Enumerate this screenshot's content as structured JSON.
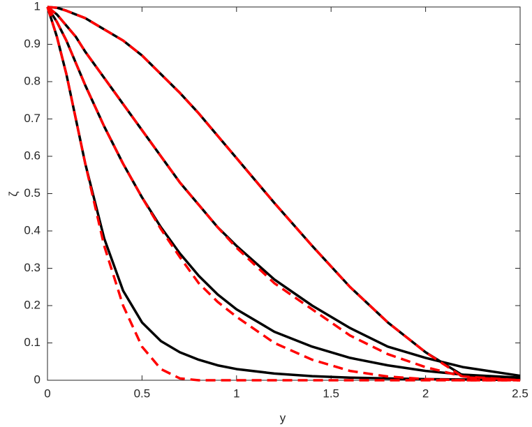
{
  "chart_data": {
    "type": "line",
    "xlabel": "y",
    "ylabel": "ζ",
    "x": [
      0,
      0.05,
      0.1,
      0.15,
      0.2,
      0.3,
      0.4,
      0.5,
      0.6,
      0.7,
      0.8,
      0.9,
      1.0,
      1.2,
      1.4,
      1.6,
      1.8,
      2.0,
      2.2,
      2.5
    ],
    "series": [
      {
        "color": "#000000",
        "line_style": "solid",
        "values": [
          1,
          0.998,
          0.99,
          0.98,
          0.97,
          0.94,
          0.91,
          0.87,
          0.82,
          0.77,
          0.715,
          0.655,
          0.595,
          0.475,
          0.36,
          0.25,
          0.155,
          0.075,
          0.012,
          0.003
        ]
      },
      {
        "color": "#000000",
        "line_style": "solid",
        "values": [
          1,
          0.98,
          0.95,
          0.92,
          0.88,
          0.81,
          0.74,
          0.67,
          0.6,
          0.53,
          0.47,
          0.41,
          0.36,
          0.27,
          0.2,
          0.14,
          0.09,
          0.06,
          0.035,
          0.012
        ]
      },
      {
        "color": "#000000",
        "line_style": "solid",
        "values": [
          1,
          0.96,
          0.91,
          0.85,
          0.79,
          0.68,
          0.58,
          0.49,
          0.41,
          0.34,
          0.28,
          0.23,
          0.19,
          0.13,
          0.09,
          0.06,
          0.04,
          0.025,
          0.015,
          0.007
        ]
      },
      {
        "color": "#000000",
        "line_style": "solid",
        "values": [
          1,
          0.92,
          0.82,
          0.7,
          0.58,
          0.38,
          0.24,
          0.155,
          0.105,
          0.075,
          0.055,
          0.04,
          0.03,
          0.018,
          0.011,
          0.007,
          0.005,
          0.003,
          0.002,
          0.001
        ]
      },
      {
        "color": "#ff0000",
        "line_style": "dashed",
        "values": [
          1,
          0.998,
          0.99,
          0.98,
          0.97,
          0.94,
          0.91,
          0.87,
          0.82,
          0.77,
          0.715,
          0.655,
          0.595,
          0.475,
          0.36,
          0.25,
          0.155,
          0.075,
          0.008,
          0
        ]
      },
      {
        "color": "#ff0000",
        "line_style": "dashed",
        "values": [
          1,
          0.98,
          0.95,
          0.92,
          0.88,
          0.81,
          0.74,
          0.67,
          0.6,
          0.53,
          0.47,
          0.41,
          0.355,
          0.26,
          0.19,
          0.12,
          0.07,
          0.035,
          0.01,
          0
        ]
      },
      {
        "color": "#ff0000",
        "line_style": "dashed",
        "values": [
          1,
          0.96,
          0.91,
          0.85,
          0.79,
          0.68,
          0.58,
          0.49,
          0.405,
          0.33,
          0.26,
          0.21,
          0.17,
          0.1,
          0.055,
          0.025,
          0.01,
          0.003,
          0,
          0
        ]
      },
      {
        "color": "#ff0000",
        "line_style": "dashed",
        "values": [
          1,
          0.92,
          0.82,
          0.7,
          0.58,
          0.36,
          0.2,
          0.09,
          0.03,
          0.005,
          0,
          0,
          0,
          0,
          0,
          0,
          0,
          0,
          0,
          0
        ]
      }
    ],
    "xlim": [
      0,
      2.5
    ],
    "xticks": [
      0,
      0.5,
      1,
      1.5,
      2,
      2.5
    ],
    "ylim": [
      0,
      1
    ],
    "yticks": [
      0,
      0.1,
      0.2,
      0.3,
      0.4,
      0.5,
      0.6,
      0.7,
      0.8,
      0.9,
      1
    ]
  }
}
